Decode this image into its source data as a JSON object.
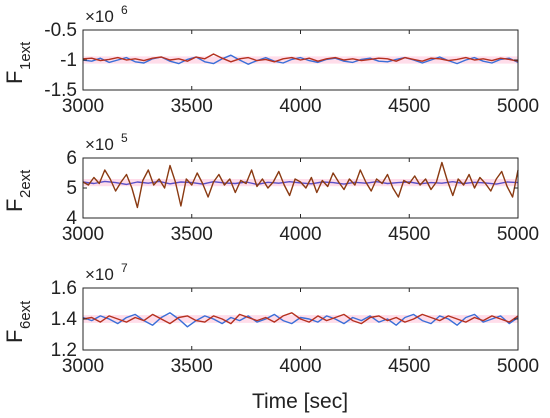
{
  "chart_data": [
    {
      "type": "line",
      "ylabel_main": "F",
      "ylabel_sub": "1ext",
      "multiplier_base": "×10",
      "multiplier_power": "6",
      "xlim": [
        3000,
        5000
      ],
      "ylim": [
        -1.5,
        -0.5
      ],
      "xticks": [
        "3000",
        "3500",
        "4000",
        "4500",
        "5000"
      ],
      "yticks": [
        "-0.5",
        "-1",
        "-1.5"
      ],
      "ytick_values": [
        -0.5,
        -1.0,
        -1.5
      ],
      "base": -1.0,
      "band": 0.06,
      "colors": {
        "blue": "#3a6fd8",
        "red": "#b5311f",
        "band": "#ff9ec2"
      },
      "series": [
        {
          "color": "#3a6fd8",
          "x": [
            3000,
            3040,
            3080,
            3120,
            3160,
            3200,
            3240,
            3280,
            3320,
            3360,
            3400,
            3440,
            3480,
            3520,
            3560,
            3600,
            3640,
            3680,
            3720,
            3760,
            3800,
            3840,
            3880,
            3920,
            3960,
            4000,
            4040,
            4080,
            4120,
            4160,
            4200,
            4240,
            4280,
            4320,
            4360,
            4400,
            4440,
            4480,
            4520,
            4560,
            4600,
            4640,
            4680,
            4720,
            4760,
            4800,
            4840,
            4880,
            4920,
            4960,
            5000
          ],
          "values": [
            -1.0,
            -1.02,
            -0.97,
            -1.04,
            -1.0,
            -0.96,
            -1.03,
            -1.05,
            -0.98,
            -0.95,
            -1.02,
            -1.06,
            -0.99,
            -0.95,
            -1.03,
            -1.06,
            -0.98,
            -0.92,
            -1.0,
            -1.07,
            -1.01,
            -0.96,
            -1.02,
            -1.05,
            -0.99,
            -0.96,
            -1.01,
            -1.04,
            -0.99,
            -0.97,
            -1.02,
            -1.04,
            -0.99,
            -0.97,
            -1.02,
            -1.03,
            -0.99,
            -0.96,
            -1.0,
            -1.05,
            -1.0,
            -0.95,
            -1.01,
            -1.06,
            -1.0,
            -0.96,
            -1.02,
            -1.05,
            -0.99,
            -0.97,
            -1.04
          ]
        },
        {
          "color": "#b5311f",
          "x": [
            3000,
            3040,
            3080,
            3120,
            3160,
            3200,
            3240,
            3280,
            3320,
            3360,
            3400,
            3440,
            3480,
            3520,
            3560,
            3600,
            3640,
            3680,
            3720,
            3760,
            3800,
            3840,
            3880,
            3920,
            3960,
            4000,
            4040,
            4080,
            4120,
            4160,
            4200,
            4240,
            4280,
            4320,
            4360,
            4400,
            4440,
            4480,
            4520,
            4560,
            4600,
            4640,
            4680,
            4720,
            4760,
            4800,
            4840,
            4880,
            4920,
            4960,
            5000
          ],
          "values": [
            -0.98,
            -0.97,
            -1.01,
            -0.99,
            -0.96,
            -1.0,
            -0.98,
            -1.01,
            -0.97,
            -0.95,
            -1.0,
            -0.98,
            -1.02,
            -0.95,
            -0.98,
            -0.9,
            -0.97,
            -1.03,
            -0.98,
            -0.96,
            -1.01,
            -0.99,
            -1.03,
            -0.98,
            -0.96,
            -1.0,
            -0.97,
            -1.02,
            -0.98,
            -0.96,
            -1.0,
            -0.98,
            -1.01,
            -0.99,
            -0.97,
            -0.98,
            -1.02,
            -0.96,
            -0.99,
            -1.02,
            -0.97,
            -0.98,
            -1.01,
            -0.99,
            -0.96,
            -1.0,
            -0.98,
            -1.01,
            -0.97,
            -0.99,
            -1.02
          ]
        }
      ]
    },
    {
      "type": "line",
      "ylabel_main": "F",
      "ylabel_sub": "2ext",
      "multiplier_base": "×10",
      "multiplier_power": "5",
      "xlim": [
        3000,
        5000
      ],
      "ylim": [
        4,
        6
      ],
      "xticks": [
        "3000",
        "3500",
        "4000",
        "4500",
        "5000"
      ],
      "yticks": [
        "6",
        "5",
        "4"
      ],
      "ytick_values": [
        6,
        5,
        4
      ],
      "base": 5.18,
      "band": 0.12,
      "colors": {
        "blue": "#3a6fd8",
        "red": "#b5311f",
        "band": "#ff9ec2"
      },
      "series": [
        {
          "color": "#5a4fc8",
          "x": [
            3000,
            3050,
            3100,
            3150,
            3200,
            3250,
            3300,
            3350,
            3400,
            3450,
            3500,
            3550,
            3600,
            3650,
            3700,
            3750,
            3800,
            3850,
            3900,
            3950,
            4000,
            4050,
            4100,
            4150,
            4200,
            4250,
            4300,
            4350,
            4400,
            4450,
            4500,
            4550,
            4600,
            4650,
            4700,
            4750,
            4800,
            4850,
            4900,
            4950,
            5000
          ],
          "values": [
            5.2,
            5.15,
            5.22,
            5.18,
            5.12,
            5.2,
            5.16,
            5.22,
            5.14,
            5.2,
            5.18,
            5.13,
            5.21,
            5.17,
            5.15,
            5.2,
            5.12,
            5.19,
            5.16,
            5.21,
            5.17,
            5.14,
            5.2,
            5.18,
            5.13,
            5.19,
            5.16,
            5.21,
            5.15,
            5.18,
            5.2,
            5.14,
            5.18,
            5.16,
            5.21,
            5.15,
            5.19,
            5.17,
            5.13,
            5.2,
            5.18
          ]
        },
        {
          "color": "#8a3a12",
          "x": [
            3000,
            3025,
            3050,
            3075,
            3100,
            3125,
            3150,
            3175,
            3200,
            3225,
            3250,
            3275,
            3300,
            3325,
            3350,
            3375,
            3400,
            3425,
            3450,
            3475,
            3500,
            3525,
            3550,
            3575,
            3600,
            3625,
            3650,
            3675,
            3700,
            3725,
            3750,
            3775,
            3800,
            3825,
            3850,
            3875,
            3900,
            3925,
            3950,
            3975,
            4000,
            4025,
            4050,
            4075,
            4100,
            4125,
            4150,
            4175,
            4200,
            4225,
            4250,
            4275,
            4300,
            4325,
            4350,
            4375,
            4400,
            4425,
            4450,
            4475,
            4500,
            4525,
            4550,
            4575,
            4600,
            4625,
            4650,
            4675,
            4700,
            4725,
            4750,
            4775,
            4800,
            4825,
            4850,
            4875,
            4900,
            4925,
            4950,
            4975,
            5000
          ],
          "values": [
            5.2,
            5.1,
            5.35,
            5.15,
            5.6,
            5.3,
            4.9,
            5.2,
            5.45,
            5.0,
            4.35,
            5.25,
            5.6,
            5.1,
            5.3,
            5.0,
            5.75,
            5.2,
            4.4,
            5.3,
            5.1,
            5.5,
            5.15,
            4.7,
            5.2,
            5.45,
            5.1,
            5.3,
            4.85,
            5.25,
            5.15,
            5.6,
            5.05,
            5.3,
            5.0,
            5.2,
            5.55,
            5.1,
            4.75,
            5.3,
            5.2,
            5.0,
            5.35,
            4.85,
            5.25,
            5.05,
            5.5,
            5.2,
            4.95,
            5.3,
            5.1,
            5.6,
            5.2,
            4.9,
            5.3,
            5.15,
            5.45,
            5.0,
            4.7,
            5.25,
            5.15,
            5.4,
            5.1,
            5.3,
            4.95,
            5.2,
            5.85,
            5.25,
            4.75,
            5.3,
            5.1,
            5.45,
            5.0,
            5.35,
            5.15,
            4.9,
            5.3,
            5.55,
            5.05,
            4.7,
            5.6
          ]
        }
      ]
    },
    {
      "type": "line",
      "ylabel_main": "F",
      "ylabel_sub": "6ext",
      "multiplier_base": "×10",
      "multiplier_power": "7",
      "xlim": [
        3000,
        5000
      ],
      "ylim": [
        1.2,
        1.6
      ],
      "xticks": [
        "3000",
        "3500",
        "4000",
        "4500",
        "5000"
      ],
      "yticks": [
        "1.6",
        "1.4",
        "1.2"
      ],
      "ytick_values": [
        1.6,
        1.4,
        1.2
      ],
      "base": 1.4,
      "band": 0.025,
      "colors": {
        "blue": "#3a6fd8",
        "red": "#b5311f",
        "band": "#ff9ec2"
      },
      "series": [
        {
          "color": "#3a6fd8",
          "x": [
            3000,
            3040,
            3080,
            3120,
            3160,
            3200,
            3240,
            3280,
            3320,
            3360,
            3400,
            3440,
            3480,
            3520,
            3560,
            3600,
            3640,
            3680,
            3720,
            3760,
            3800,
            3840,
            3880,
            3920,
            3960,
            4000,
            4040,
            4080,
            4120,
            4160,
            4200,
            4240,
            4280,
            4320,
            4360,
            4400,
            4440,
            4480,
            4520,
            4560,
            4600,
            4640,
            4680,
            4720,
            4760,
            4800,
            4840,
            4880,
            4920,
            4960,
            5000
          ],
          "values": [
            1.41,
            1.39,
            1.42,
            1.4,
            1.37,
            1.41,
            1.43,
            1.39,
            1.36,
            1.41,
            1.44,
            1.4,
            1.35,
            1.39,
            1.42,
            1.4,
            1.37,
            1.41,
            1.39,
            1.42,
            1.38,
            1.4,
            1.43,
            1.39,
            1.37,
            1.41,
            1.4,
            1.38,
            1.42,
            1.4,
            1.37,
            1.41,
            1.39,
            1.42,
            1.38,
            1.4,
            1.36,
            1.41,
            1.43,
            1.39,
            1.37,
            1.42,
            1.4,
            1.36,
            1.41,
            1.43,
            1.38,
            1.4,
            1.42,
            1.37,
            1.41
          ]
        },
        {
          "color": "#b5311f",
          "x": [
            3000,
            3040,
            3080,
            3120,
            3160,
            3200,
            3240,
            3280,
            3320,
            3360,
            3400,
            3440,
            3480,
            3520,
            3560,
            3600,
            3640,
            3680,
            3720,
            3760,
            3800,
            3840,
            3880,
            3920,
            3960,
            4000,
            4040,
            4080,
            4120,
            4160,
            4200,
            4240,
            4280,
            4320,
            4360,
            4400,
            4440,
            4480,
            4520,
            4560,
            4600,
            4640,
            4680,
            4720,
            4760,
            4800,
            4840,
            4880,
            4920,
            4960,
            5000
          ],
          "values": [
            1.4,
            1.41,
            1.38,
            1.42,
            1.4,
            1.38,
            1.41,
            1.39,
            1.43,
            1.4,
            1.37,
            1.41,
            1.42,
            1.39,
            1.38,
            1.42,
            1.4,
            1.37,
            1.43,
            1.41,
            1.39,
            1.41,
            1.38,
            1.42,
            1.44,
            1.4,
            1.38,
            1.42,
            1.39,
            1.41,
            1.43,
            1.39,
            1.37,
            1.41,
            1.42,
            1.39,
            1.41,
            1.38,
            1.4,
            1.43,
            1.41,
            1.39,
            1.42,
            1.4,
            1.38,
            1.41,
            1.39,
            1.42,
            1.4,
            1.38,
            1.42
          ]
        }
      ]
    }
  ],
  "shared": {
    "xlabel": "Time [sec]"
  }
}
